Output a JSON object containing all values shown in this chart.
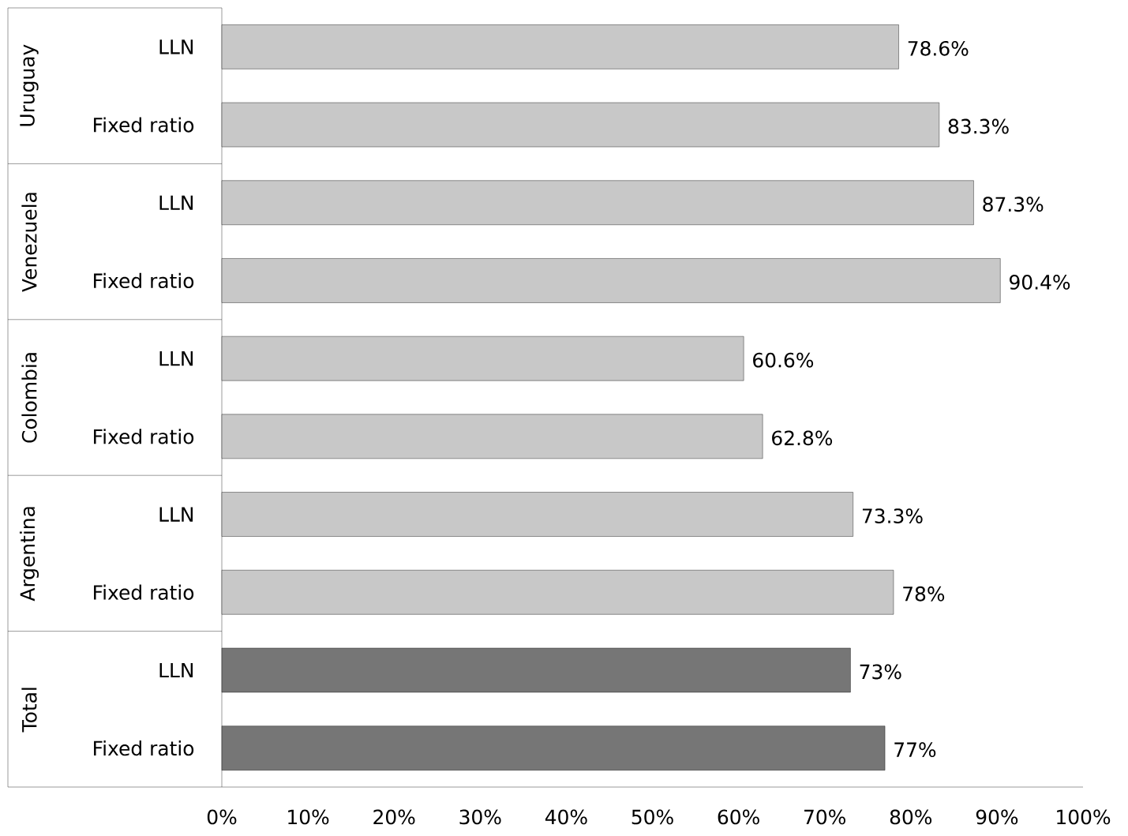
{
  "chart_data": {
    "type": "bar",
    "orientation": "horizontal",
    "categories": [
      "LLN",
      "Fixed ratio",
      "LLN",
      "Fixed ratio",
      "LLN",
      "Fixed ratio",
      "LLN",
      "Fixed ratio",
      "LLN",
      "Fixed ratio"
    ],
    "values": [
      78.6,
      83.3,
      87.3,
      90.4,
      60.6,
      62.8,
      73.3,
      78,
      73,
      77
    ],
    "value_labels": [
      "78.6%",
      "83.3%",
      "87.3%",
      "90.4%",
      "60.6%",
      "62.8%",
      "73.3%",
      "78%",
      "73%",
      "77%"
    ],
    "colors": [
      "#c8c8c8",
      "#c8c8c8",
      "#c8c8c8",
      "#c8c8c8",
      "#c8c8c8",
      "#c8c8c8",
      "#c8c8c8",
      "#c8c8c8",
      "#767676",
      "#767676"
    ],
    "xlim": [
      0,
      100
    ],
    "xticks": [
      {
        "value": 0,
        "label": "0%"
      },
      {
        "value": 10,
        "label": "10%"
      },
      {
        "value": 20,
        "label": "20%"
      },
      {
        "value": 30,
        "label": "30%"
      },
      {
        "value": 40,
        "label": "40%"
      },
      {
        "value": 50,
        "label": "50%"
      },
      {
        "value": 60,
        "label": "60%"
      },
      {
        "value": 70,
        "label": "70%"
      },
      {
        "value": 80,
        "label": "80%"
      },
      {
        "value": 90,
        "label": "90%"
      },
      {
        "value": 100,
        "label": "100%"
      }
    ],
    "annotations": [
      "Uruguay",
      "Venezuela",
      "Colombia",
      "Argentina",
      "Total"
    ]
  }
}
